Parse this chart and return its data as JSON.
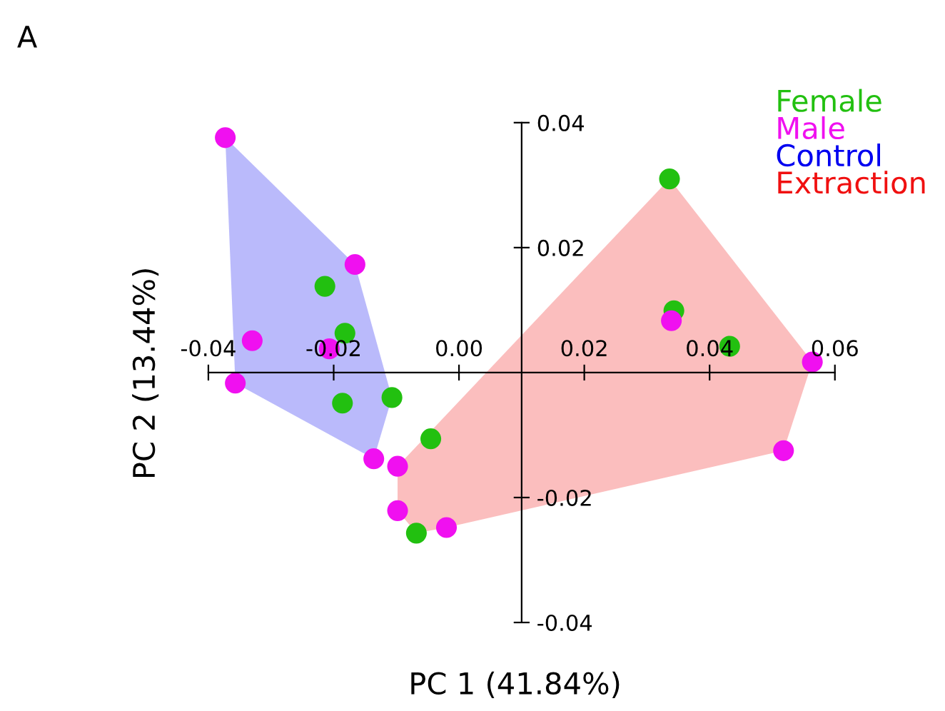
{
  "chart_data": {
    "type": "scatter",
    "title": "A",
    "xlabel": "PC 1 (41.84%)",
    "ylabel": "PC 2 (13.44%)",
    "xlim": [
      -0.04,
      0.06
    ],
    "ylim": [
      -0.04,
      0.04
    ],
    "xticks": [
      -0.04,
      -0.02,
      {
        "value": 0,
        "label": "0.00"
      },
      0.02,
      0.04,
      0.06
    ],
    "yticks": [
      -0.04,
      -0.02,
      0.02,
      0.04
    ],
    "grid": false,
    "legend": "top right",
    "series": [
      {
        "name": "Female",
        "marker": "circle",
        "color": "#22c010",
        "x": [
          -0.0214,
          -0.0182,
          -0.0186,
          -0.0107,
          -0.0045,
          -0.0068,
          0.0336,
          0.0343,
          0.0432
        ],
        "values": [
          0.0138,
          0.0063,
          -0.0049,
          -0.004,
          -0.0106,
          -0.0257,
          0.031,
          0.0099,
          0.0042
        ]
      },
      {
        "name": "Male",
        "marker": "circle",
        "color": "#f010f0",
        "x": [
          -0.0373,
          -0.0166,
          -0.033,
          -0.0357,
          -0.0207,
          -0.0136,
          -0.0098,
          -0.0098,
          -0.002,
          0.0339,
          0.0564,
          0.0518
        ],
        "values": [
          0.0376,
          0.0173,
          0.0051,
          -0.0017,
          0.0038,
          -0.0138,
          -0.015,
          -0.0221,
          -0.0248,
          0.0083,
          0.0017,
          -0.0125
        ]
      },
      {
        "name": "Control",
        "type": "area",
        "color": "#0000f0",
        "x": [
          -0.0373,
          -0.0166,
          -0.0107,
          -0.0136,
          -0.0357
        ],
        "values": [
          0.0376,
          0.0173,
          -0.004,
          -0.0138,
          -0.0017
        ]
      },
      {
        "name": "Extraction",
        "type": "area",
        "color": "#f01010",
        "x": [
          0.0336,
          0.0564,
          0.0518,
          -0.002,
          -0.0068,
          -0.0098,
          -0.0098
        ],
        "values": [
          0.031,
          0.0017,
          -0.0125,
          -0.0248,
          -0.0257,
          -0.0221,
          -0.015
        ]
      }
    ]
  }
}
